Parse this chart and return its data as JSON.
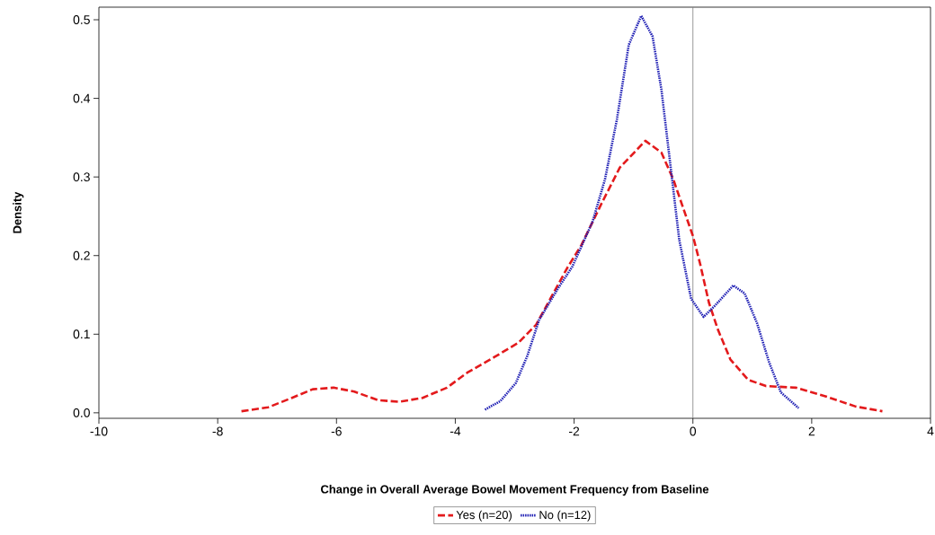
{
  "chart_data": {
    "type": "line",
    "xlabel": "Change in Overall Average Bowel Movement Frequency from Baseline",
    "ylabel": "Density",
    "xlim": [
      -10,
      4
    ],
    "xticks": [
      -10,
      -8,
      -6,
      -4,
      -2,
      0,
      2,
      4
    ],
    "ylim": [
      -0.007,
      0.516
    ],
    "yticks": [
      {
        "value": 0,
        "label": "0.0"
      },
      0.1,
      0.2,
      0.3,
      0.4,
      0.5
    ],
    "grid": false,
    "legend": "bottom",
    "marker": "none",
    "ref_lines": [
      {
        "axis": "x",
        "value": 0,
        "color": "#808080"
      }
    ],
    "series": [
      {
        "name": "Yes (n=20)",
        "color": "#e31a1c",
        "line_style": "dashed",
        "x": [
          -7.6,
          -7.15,
          -6.75,
          -6.4,
          -6.05,
          -5.7,
          -5.3,
          -4.94,
          -4.55,
          -4.14,
          -3.8,
          -3.34,
          -2.94,
          -2.64,
          -2.11,
          -1.88,
          -1.54,
          -1.23,
          -0.8,
          -0.53,
          -0.33,
          -0.12,
          0.0,
          0.12,
          0.27,
          0.42,
          0.63,
          0.93,
          1.23,
          1.73,
          2.23,
          2.74,
          3.19
        ],
        "values": [
          0.002,
          0.007,
          0.019,
          0.03,
          0.032,
          0.027,
          0.016,
          0.014,
          0.019,
          0.032,
          0.051,
          0.071,
          0.089,
          0.112,
          0.185,
          0.213,
          0.266,
          0.312,
          0.346,
          0.331,
          0.297,
          0.251,
          0.225,
          0.19,
          0.14,
          0.106,
          0.068,
          0.042,
          0.034,
          0.032,
          0.021,
          0.008,
          0.002
        ]
      },
      {
        "name": "No (n=12)",
        "color": "#1f1fb4",
        "line_style": "dotted",
        "x": [
          -3.5,
          -3.24,
          -2.98,
          -2.79,
          -2.59,
          -2.29,
          -2.03,
          -1.69,
          -1.48,
          -1.28,
          -1.08,
          -0.87,
          -0.68,
          -0.53,
          -0.38,
          -0.23,
          -0.03,
          0.18,
          0.38,
          0.68,
          0.87,
          1.08,
          1.28,
          1.48,
          1.78
        ],
        "values": [
          0.004,
          0.015,
          0.038,
          0.072,
          0.118,
          0.156,
          0.186,
          0.243,
          0.297,
          0.373,
          0.468,
          0.505,
          0.479,
          0.411,
          0.316,
          0.22,
          0.145,
          0.122,
          0.137,
          0.162,
          0.152,
          0.114,
          0.065,
          0.026,
          0.006
        ]
      }
    ]
  }
}
